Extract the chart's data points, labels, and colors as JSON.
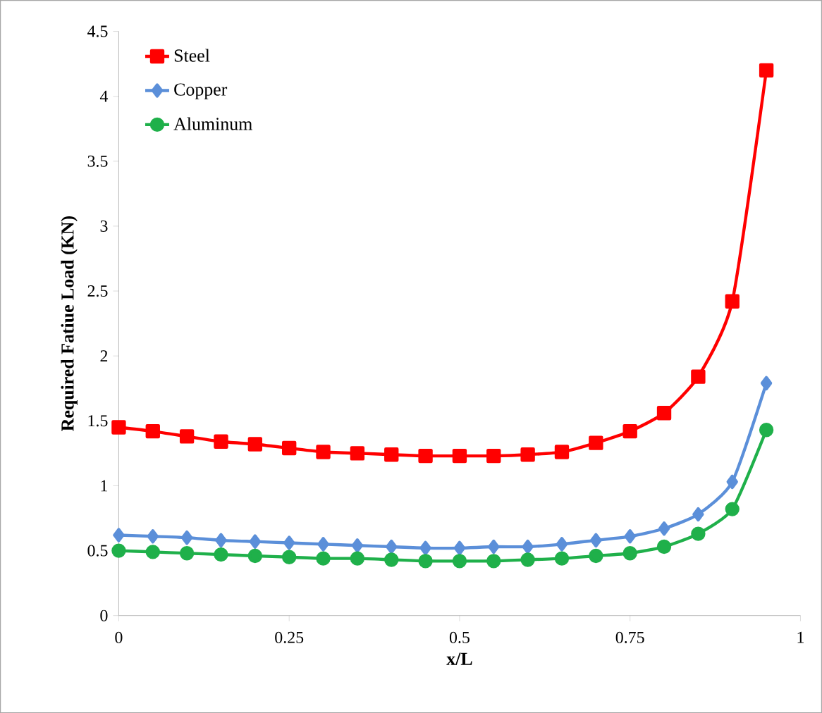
{
  "chart_data": {
    "type": "line",
    "xlabel": "x/L",
    "ylabel": "Required Fatiue Load (KN)",
    "x": [
      0,
      0.05,
      0.1,
      0.15,
      0.2,
      0.25,
      0.3,
      0.35,
      0.4,
      0.45,
      0.5,
      0.55,
      0.6,
      0.65,
      0.7,
      0.75,
      0.8,
      0.85,
      0.9,
      0.95
    ],
    "series": [
      {
        "name": "Steel",
        "color": "#ff0000",
        "marker": "square",
        "values": [
          1.45,
          1.42,
          1.38,
          1.34,
          1.32,
          1.29,
          1.26,
          1.25,
          1.24,
          1.23,
          1.23,
          1.23,
          1.24,
          1.26,
          1.33,
          1.42,
          1.56,
          1.84,
          2.42,
          4.2
        ]
      },
      {
        "name": "Copper",
        "color": "#5b8fd9",
        "marker": "diamond",
        "values": [
          0.62,
          0.61,
          0.6,
          0.58,
          0.57,
          0.56,
          0.55,
          0.54,
          0.53,
          0.52,
          0.52,
          0.53,
          0.53,
          0.55,
          0.58,
          0.61,
          0.67,
          0.78,
          1.03,
          1.79
        ]
      },
      {
        "name": "Aluminum",
        "color": "#1fb04a",
        "marker": "circle",
        "values": [
          0.5,
          0.49,
          0.48,
          0.47,
          0.46,
          0.45,
          0.44,
          0.44,
          0.43,
          0.42,
          0.42,
          0.42,
          0.43,
          0.44,
          0.46,
          0.48,
          0.53,
          0.63,
          0.82,
          1.43
        ]
      }
    ],
    "xlim": [
      0,
      1
    ],
    "xticks": [
      0,
      0.25,
      0.5,
      0.75,
      1
    ],
    "ylim": [
      0,
      4.5
    ],
    "yticks": [
      0,
      0.5,
      1,
      1.5,
      2,
      2.5,
      3,
      3.5,
      4,
      4.5
    ],
    "legend": "top left",
    "line_style": "solid",
    "grid": false
  }
}
